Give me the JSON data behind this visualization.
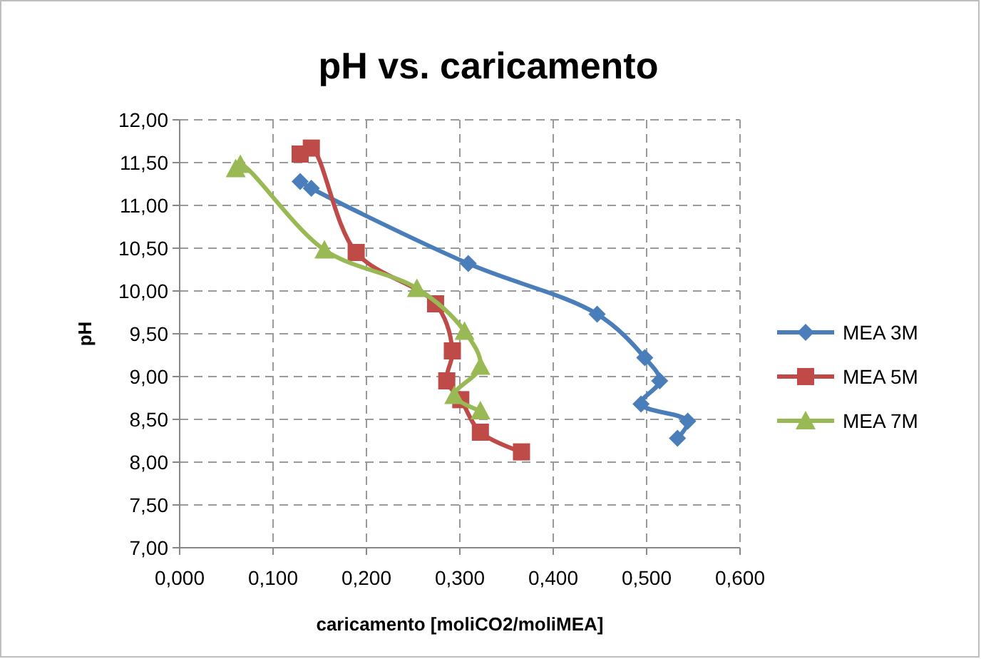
{
  "chart_data": {
    "type": "line",
    "title": "pH vs. caricamento",
    "xlabel": "caricamento [moliCO2/moliMEA]",
    "ylabel": "pH",
    "series": [
      {
        "name": "MEA 3M",
        "color": "#4a7ebb",
        "marker": "diamond",
        "x": [
          0.129,
          0.141,
          0.309,
          0.447,
          0.498,
          0.514,
          0.494,
          0.544,
          0.533
        ],
        "values": [
          11.28,
          11.2,
          10.32,
          9.73,
          9.22,
          8.95,
          8.68,
          8.48,
          8.28
        ]
      },
      {
        "name": "MEA 5M",
        "color": "#be4b48",
        "marker": "square",
        "x": [
          0.129,
          0.141,
          0.189,
          0.274,
          0.292,
          0.286,
          0.301,
          0.322,
          0.366
        ],
        "values": [
          11.6,
          11.67,
          10.45,
          9.85,
          9.3,
          8.95,
          8.73,
          8.35,
          8.12
        ]
      },
      {
        "name": "MEA 7M",
        "color": "#98b954",
        "marker": "triangle",
        "x": [
          0.06,
          0.065,
          0.155,
          0.254,
          0.305,
          0.322,
          0.294,
          0.322
        ],
        "values": [
          11.43,
          11.48,
          10.48,
          10.03,
          9.53,
          9.12,
          8.78,
          8.6
        ]
      }
    ],
    "xlim": [
      0,
      0.6
    ],
    "xticks": [
      {
        "value": 0,
        "label": "0,000"
      },
      {
        "value": 0.1,
        "label": "0,100"
      },
      {
        "value": 0.2,
        "label": "0,200"
      },
      {
        "value": 0.3,
        "label": "0,300"
      },
      {
        "value": 0.4,
        "label": "0,400"
      },
      {
        "value": 0.5,
        "label": "0,500"
      },
      {
        "value": 0.6,
        "label": "0,600"
      }
    ],
    "ylim": [
      7,
      12
    ],
    "yticks": [
      {
        "value": 7,
        "label": "7,00"
      },
      {
        "value": 7.5,
        "label": "7,50"
      },
      {
        "value": 8,
        "label": "8,00"
      },
      {
        "value": 8.5,
        "label": "8,50"
      },
      {
        "value": 9,
        "label": "9,00"
      },
      {
        "value": 9.5,
        "label": "9,50"
      },
      {
        "value": 10,
        "label": "10,00"
      },
      {
        "value": 10.5,
        "label": "10,50"
      },
      {
        "value": 11,
        "label": "11,00"
      },
      {
        "value": 11.5,
        "label": "11,50"
      },
      {
        "value": 12,
        "label": "12,00"
      }
    ],
    "grid": true,
    "legend": "right",
    "line_style": "solid"
  }
}
